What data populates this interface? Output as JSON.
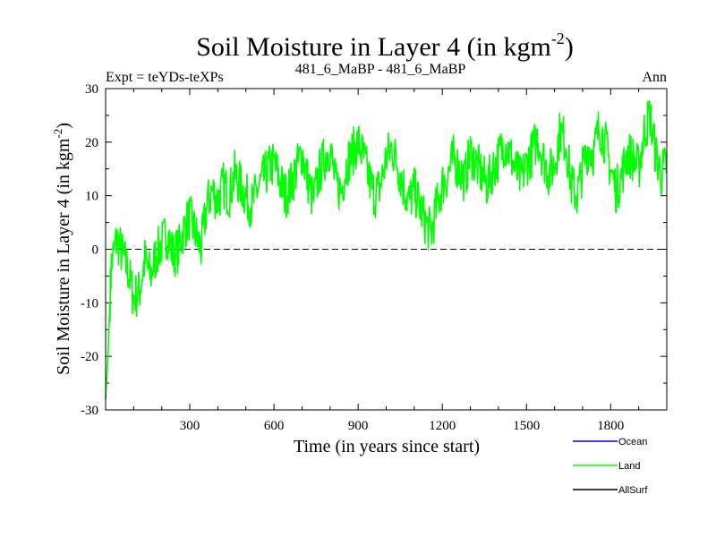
{
  "chart_data": {
    "type": "line",
    "title": "Soil Moisture in Layer 4 (in kgm",
    "title_sup": "-2",
    "title_close": ")",
    "subtitle_left": "Expt = teYDs-teXPs",
    "subtitle_center": "481_6_MaBP - 481_6_MaBP",
    "subtitle_right": "Ann",
    "xlabel": "Time (in years since start)",
    "ylabel": "Soil Moisture in Layer 4 (in kgm",
    "ylabel_sup": "-2",
    "ylabel_close": ")",
    "xlim": [
      0,
      2000
    ],
    "ylim": [
      -30,
      30
    ],
    "xticks": [
      300,
      600,
      900,
      1200,
      1500,
      1800
    ],
    "yticks": [
      -30,
      -20,
      -10,
      0,
      10,
      20,
      30
    ],
    "reference_line": 0,
    "legend": [
      {
        "name": "Ocean",
        "color": "#0000ff"
      },
      {
        "name": "Land",
        "color": "#00ff00"
      },
      {
        "name": "AllSurf",
        "color": "#000000"
      }
    ],
    "series": [
      {
        "name": "Land",
        "color": "#00ff00",
        "x": [
          0,
          10,
          20,
          40,
          60,
          80,
          100,
          120,
          140,
          160,
          180,
          200,
          220,
          240,
          260,
          280,
          300,
          320,
          340,
          360,
          380,
          400,
          420,
          440,
          460,
          480,
          500,
          520,
          540,
          560,
          580,
          600,
          620,
          640,
          660,
          680,
          700,
          720,
          740,
          760,
          780,
          800,
          820,
          840,
          860,
          880,
          900,
          920,
          940,
          960,
          980,
          1000,
          1020,
          1040,
          1060,
          1080,
          1100,
          1120,
          1140,
          1160,
          1180,
          1200,
          1220,
          1240,
          1260,
          1280,
          1300,
          1320,
          1340,
          1360,
          1380,
          1400,
          1420,
          1440,
          1460,
          1480,
          1500,
          1520,
          1540,
          1560,
          1580,
          1600,
          1620,
          1640,
          1660,
          1680,
          1700,
          1720,
          1740,
          1760,
          1780,
          1800,
          1820,
          1840,
          1860,
          1880,
          1900,
          1920,
          1940,
          1960,
          1980,
          2000
        ],
        "values": [
          -28,
          -18,
          -3,
          2,
          -1,
          -4,
          -9,
          -8,
          -2,
          -5,
          -1,
          1,
          3,
          -1,
          0,
          4,
          6,
          3,
          0,
          8,
          11,
          9,
          12,
          10,
          14,
          12,
          10,
          8,
          11,
          13,
          15,
          16,
          13,
          10,
          12,
          15,
          18,
          13,
          9,
          14,
          17,
          19,
          12,
          11,
          16,
          18,
          20,
          17,
          13,
          10,
          12,
          17,
          19,
          16,
          12,
          9,
          11,
          8,
          5,
          3,
          8,
          12,
          14,
          17,
          15,
          13,
          18,
          16,
          14,
          12,
          15,
          17,
          20,
          18,
          15,
          13,
          16,
          18,
          21,
          17,
          14,
          16,
          22,
          20,
          12,
          10,
          15,
          19,
          18,
          23,
          20,
          15,
          11,
          14,
          18,
          17,
          15,
          22,
          25,
          18,
          14,
          16
        ]
      }
    ]
  }
}
